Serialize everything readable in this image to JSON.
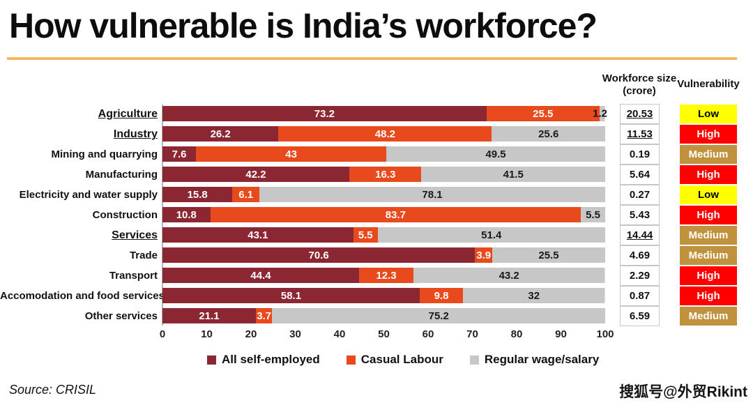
{
  "page": {
    "title": "How vulnerable is India’s workforce?",
    "source": "Source: CRISIL",
    "watermark": "搜狐号@外贸Rikint"
  },
  "table_headers": {
    "workforce": "Workforce size (crore)",
    "vulnerability": "Vulnerability"
  },
  "colors": {
    "title_underline": "#F6B661",
    "axis_line": "#B3B3B3"
  },
  "vulnerability_colors": {
    "Low": {
      "bg": "#FFFF00",
      "text": "#000000"
    },
    "High": {
      "bg": "#FF0000",
      "text": "#FFFFFF"
    },
    "Medium": {
      "bg": "#C0923D",
      "text": "#FFFFFF"
    }
  },
  "chart_data": {
    "type": "bar",
    "stacked": true,
    "orientation": "horizontal",
    "title": "How vulnerable is India’s workforce?",
    "xlabel": "",
    "ylabel": "",
    "xlim": [
      0,
      100
    ],
    "x_ticks": [
      0,
      10,
      20,
      30,
      40,
      50,
      60,
      70,
      80,
      90,
      100
    ],
    "grid": false,
    "legend_position": "bottom",
    "series_names": [
      "All self-employed",
      "Casual Labour",
      "Regular wage/salary"
    ],
    "series_colors": [
      "#8B2733",
      "#E8491D",
      "#C7C7C7"
    ],
    "series_label_colors": [
      "#FFFFFF",
      "#FFFFFF",
      "#1A1A1A"
    ],
    "rows": [
      {
        "label": "Agriculture",
        "emphasis": true,
        "values": [
          73.2,
          25.5,
          1.2
        ],
        "workforce": "20.53",
        "vulnerability": "Low"
      },
      {
        "label": "Industry",
        "emphasis": true,
        "values": [
          26.2,
          48.2,
          25.6
        ],
        "workforce": "11.53",
        "vulnerability": "High"
      },
      {
        "label": "Mining and quarrying",
        "emphasis": false,
        "values": [
          7.6,
          43,
          49.5
        ],
        "workforce": "0.19",
        "vulnerability": "Medium"
      },
      {
        "label": "Manufacturing",
        "emphasis": false,
        "values": [
          42.2,
          16.3,
          41.5
        ],
        "workforce": "5.64",
        "vulnerability": "High"
      },
      {
        "label": "Electricity and water supply",
        "emphasis": false,
        "values": [
          15.8,
          6.1,
          78.1
        ],
        "workforce": "0.27",
        "vulnerability": "Low"
      },
      {
        "label": "Construction",
        "emphasis": false,
        "values": [
          10.8,
          83.7,
          5.5
        ],
        "workforce": "5.43",
        "vulnerability": "High"
      },
      {
        "label": "Services",
        "emphasis": true,
        "values": [
          43.1,
          5.5,
          51.4
        ],
        "workforce": "14.44",
        "vulnerability": "Medium"
      },
      {
        "label": "Trade",
        "emphasis": false,
        "values": [
          70.6,
          3.9,
          25.5
        ],
        "workforce": "4.69",
        "vulnerability": "Medium"
      },
      {
        "label": "Transport",
        "emphasis": false,
        "values": [
          44.4,
          12.3,
          43.2
        ],
        "workforce": "2.29",
        "vulnerability": "High"
      },
      {
        "label": "Accomodation and food services",
        "emphasis": false,
        "values": [
          58.1,
          9.8,
          32
        ],
        "workforce": "0.87",
        "vulnerability": "High"
      },
      {
        "label": "Other services",
        "emphasis": false,
        "values": [
          21.1,
          3.7,
          75.2
        ],
        "workforce": "6.59",
        "vulnerability": "Medium"
      }
    ]
  }
}
